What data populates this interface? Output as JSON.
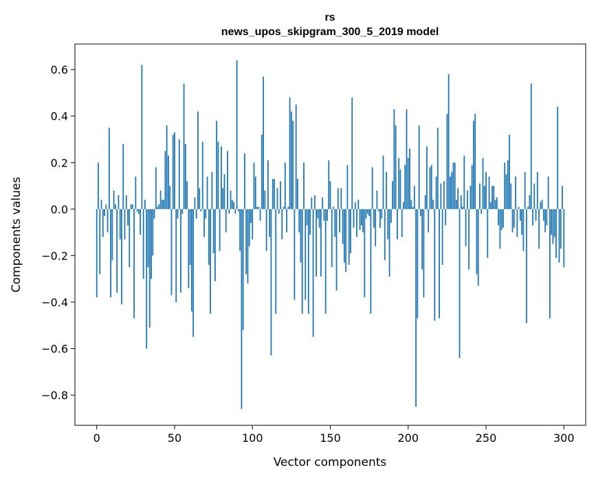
{
  "chart_data": {
    "type": "bar",
    "title": "rs",
    "subtitle": "news_upos_skipgram_300_5_2019 model",
    "xlabel": "Vector components",
    "ylabel": "Components values",
    "xlim": [
      -14,
      314
    ],
    "ylim": [
      -0.93,
      0.71
    ],
    "xticks": [
      0,
      50,
      100,
      150,
      200,
      250,
      300
    ],
    "yticks": [
      -0.8,
      -0.6,
      -0.4,
      -0.2,
      0.0,
      0.2,
      0.4,
      0.6
    ],
    "ytick_labels": [
      "−0.8",
      "−0.6",
      "−0.4",
      "−0.2",
      "0.0",
      "0.2",
      "0.4",
      "0.6"
    ],
    "bar_color": "#1f77b4",
    "x": "0..299",
    "values": [
      -0.38,
      0.2,
      -0.28,
      0.04,
      -0.12,
      -0.03,
      0.02,
      -0.1,
      0.35,
      -0.38,
      -0.22,
      0.08,
      0.02,
      -0.36,
      0.06,
      -0.13,
      -0.41,
      0.28,
      -0.13,
      0.06,
      -0.07,
      -0.25,
      0.02,
      0.02,
      -0.47,
      0.14,
      -0.01,
      -0.02,
      -0.11,
      0.62,
      -0.3,
      0.04,
      -0.6,
      -0.25,
      -0.51,
      -0.3,
      -0.2,
      -0.04,
      0.18,
      0.01,
      0.02,
      0.08,
      0.04,
      0.04,
      0.25,
      0.36,
      0.23,
      0.1,
      -0.37,
      0.32,
      0.33,
      -0.4,
      -0.04,
      0.3,
      -0.36,
      -0.02,
      0.54,
      0.28,
      0.12,
      -0.34,
      -0.24,
      -0.44,
      -0.55,
      0.05,
      -0.04,
      0.42,
      0.09,
      -0.01,
      0.29,
      -0.12,
      -0.04,
      0.14,
      -0.24,
      -0.45,
      0.16,
      -0.19,
      -0.31,
      0.38,
      0.29,
      -0.18,
      0.27,
      0.09,
      0.15,
      -0.1,
      0.25,
      -0.02,
      0.08,
      0.04,
      0.03,
      -0.02,
      0.64,
      -0.01,
      -0.18,
      -0.86,
      -0.52,
      0.24,
      -0.28,
      -0.32,
      -0.16,
      -0.06,
      -0.13,
      0.2,
      0.14,
      0.01,
      0.01,
      -0.05,
      0.32,
      0.57,
      0.08,
      -0.18,
      0.21,
      -0.12,
      -0.63,
      0.13,
      0.13,
      -0.45,
      0.09,
      -0.02,
      0.12,
      -0.13,
      0.01,
      0.2,
      -0.1,
      0.01,
      0.48,
      0.42,
      0.38,
      -0.39,
      0.45,
      0.13,
      -0.1,
      -0.23,
      -0.45,
      0.2,
      -0.39,
      -0.07,
      -0.45,
      -0.11,
      0.05,
      -0.55,
      0.06,
      -0.29,
      -0.04,
      -0.08,
      -0.29,
      0.05,
      -0.05,
      -0.45,
      -0.05,
      0.21,
      0.12,
      -0.25,
      0.01,
      -0.12,
      -0.35,
      0.09,
      -0.1,
      0.09,
      -0.15,
      -0.23,
      -0.27,
      0.19,
      -0.24,
      -0.19,
      0.48,
      -0.08,
      0.03,
      -0.12,
      0.04,
      -0.09,
      -0.07,
      -0.1,
      -0.38,
      -0.04,
      -0.02,
      -0.03,
      -0.45,
      0.18,
      -0.08,
      -0.16,
      0.08,
      -0.01,
      -0.08,
      -0.04,
      0.23,
      -0.22,
      0.16,
      -0.13,
      -0.29,
      -0.06,
      0.12,
      0.43,
      0.36,
      -0.13,
      0.22,
      0.17,
      -0.12,
      0.03,
      0.19,
      0.43,
      0.22,
      0.26,
      0.04,
      0.01,
      0.1,
      -0.85,
      -0.47,
      0.36,
      -0.03,
      -0.26,
      -0.38,
      0.06,
      0.27,
      -0.1,
      0.18,
      0.19,
      0.04,
      -0.48,
      0.14,
      0.35,
      -0.47,
      0.11,
      -0.24,
      0.12,
      -0.07,
      0.41,
      0.58,
      0.14,
      0.16,
      0.2,
      0.2,
      0.04,
      0.09,
      -0.64,
      0.06,
      0.01,
      0.23,
      -0.16,
      0.08,
      -0.26,
      0.1,
      0.19,
      0.38,
      0.41,
      -0.28,
      -0.33,
      0.11,
      -0.02,
      0.22,
      0.1,
      0.16,
      -0.21,
      0.14,
      0.03,
      0.1,
      0.1,
      0.04,
      0.05,
      -0.07,
      -0.17,
      -0.09,
      -0.08,
      0.2,
      0.15,
      0.21,
      0.32,
      0.11,
      -0.1,
      -0.08,
      0.14,
      -0.12,
      0.01,
      -0.05,
      -0.11,
      -0.18,
      0.16,
      -0.49,
      0.01,
      0.06,
      0.54,
      -0.07,
      0.11,
      -0.05,
      0.16,
      -0.17,
      0.03,
      0.04,
      -0.05,
      -0.1,
      -0.07,
      0.14,
      -0.47,
      -0.11,
      -0.15,
      -0.12,
      -0.21,
      0.44,
      -0.23,
      -0.17,
      0.1,
      -0.25
    ]
  }
}
